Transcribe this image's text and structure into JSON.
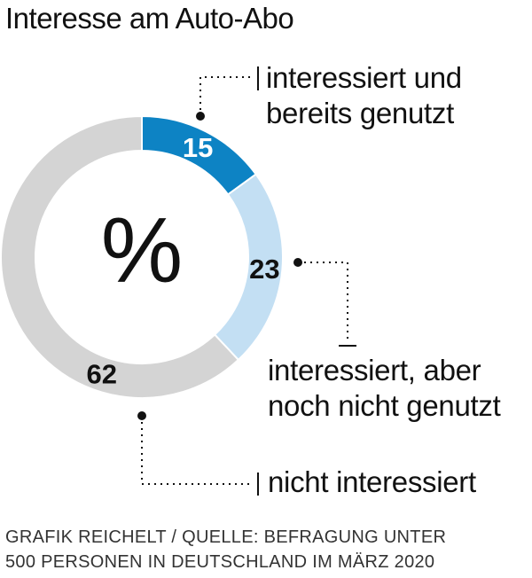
{
  "chart_data": {
    "type": "pie",
    "variant": "donut",
    "title": "Interesse am Auto-Abo",
    "center_label": "%",
    "categories": [
      "interessiert und bereits genutzt",
      "interessiert, aber noch nicht genutzt",
      "nicht interessiert"
    ],
    "values": [
      15,
      23,
      62
    ],
    "colors": [
      "#0d83c4",
      "#c3dff3",
      "#d4d4d4"
    ],
    "value_label_colors": [
      "#ffffff",
      "#111111",
      "#111111"
    ],
    "labels": [
      {
        "lines": [
          "interessiert und",
          "bereits genutzt"
        ]
      },
      {
        "lines": [
          "interessiert, aber",
          "noch nicht genutzt"
        ]
      },
      {
        "lines": [
          "nicht interessiert"
        ]
      }
    ],
    "source_lines": [
      "GRAFIK REICHELT / QUELLE: BEFRAGUNG UNTER",
      "500 PERSONEN IN DEUTSCHLAND IM MÄRZ 2020"
    ]
  }
}
